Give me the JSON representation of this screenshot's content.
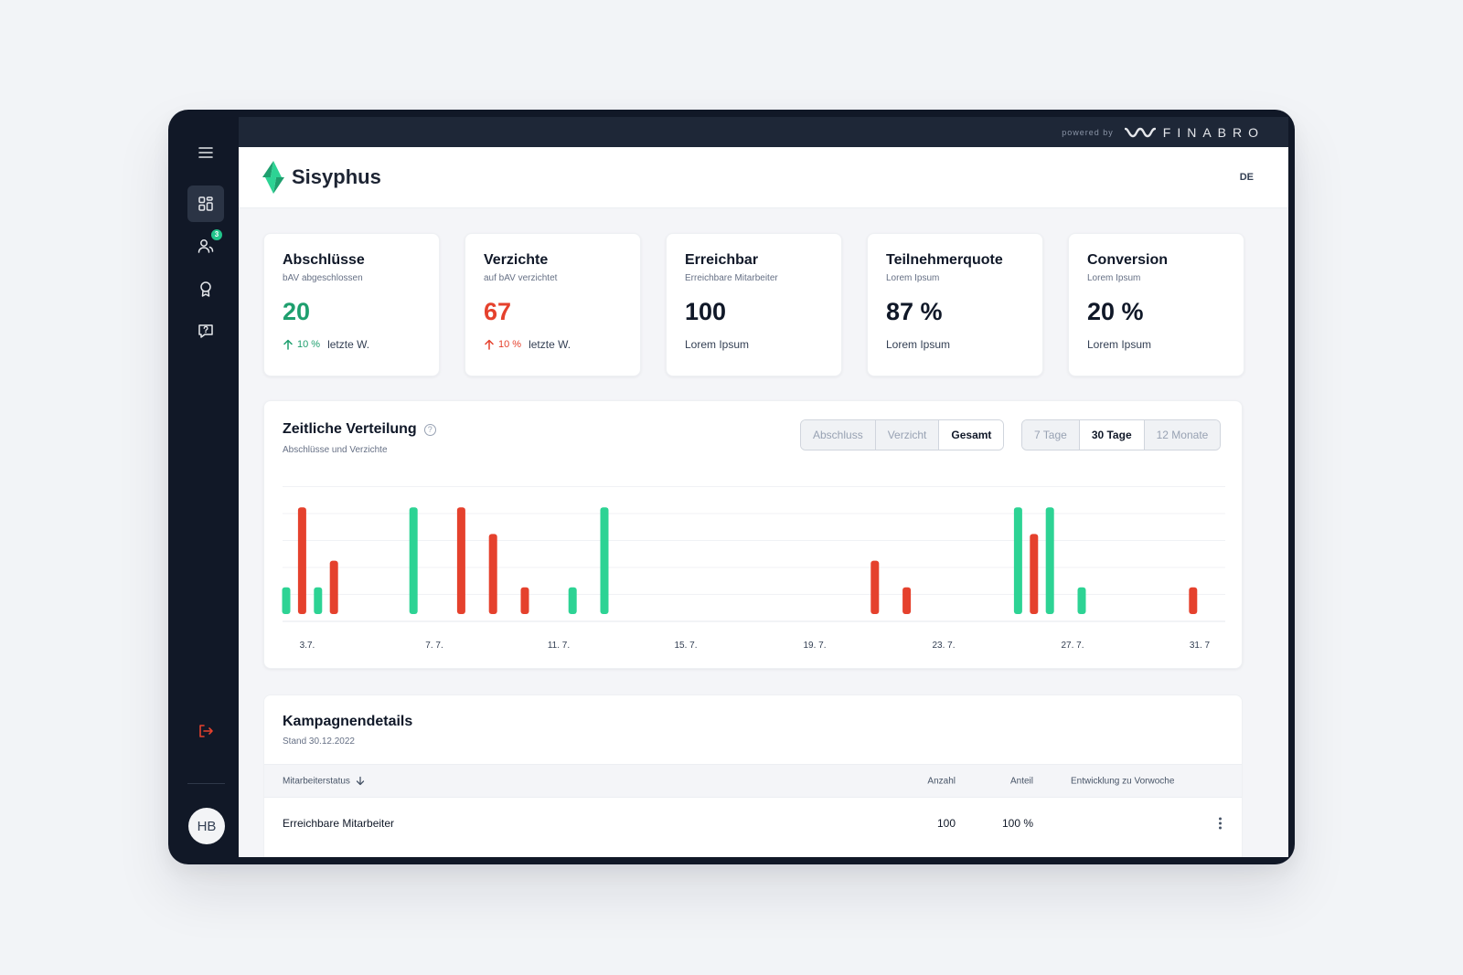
{
  "topbar": {
    "powered_by": "powered by",
    "partner": "FINABRO"
  },
  "header": {
    "app_name": "Sisyphus",
    "language": "DE"
  },
  "sidebar": {
    "notification_count": "3",
    "avatar_initials": "HB"
  },
  "kpis": [
    {
      "title": "Abschlüsse",
      "subtitle": "bAV abgeschlossen",
      "value": "20",
      "change": "10 %",
      "note": "letzte W."
    },
    {
      "title": "Verzichte",
      "subtitle": "auf bAV verzichtet",
      "value": "67",
      "change": "10 %",
      "note": "letzte W."
    },
    {
      "title": "Erreichbar",
      "subtitle": "Erreichbare Mitarbeiter",
      "value": "100",
      "footer": "Lorem Ipsum"
    },
    {
      "title": "Teilnehmerquote",
      "subtitle": "Lorem Ipsum",
      "value": "87 %",
      "footer": "Lorem Ipsum"
    },
    {
      "title": "Conversion",
      "subtitle": "Lorem Ipsum",
      "value": "20 %",
      "footer": "Lorem Ipsum"
    }
  ],
  "colors": {
    "accent_green": "#2dd394",
    "accent_red": "#e5412d",
    "sidebar_bg": "#111827"
  },
  "chart": {
    "title": "Zeitliche Verteilung",
    "subtitle": "Abschlüsse und Verzichte",
    "type_filter": [
      "Abschluss",
      "Verzicht",
      "Gesamt"
    ],
    "type_selected": "Gesamt",
    "range_filter": [
      "7 Tage",
      "30 Tage",
      "12 Monate"
    ],
    "range_selected": "30 Tage"
  },
  "chart_data": {
    "type": "bar",
    "x_tick_labels": [
      "3.7.",
      "7. 7.",
      "11. 7.",
      "15. 7.",
      "19. 7.",
      "23. 7.",
      "27. 7.",
      "31. 7"
    ],
    "ylim": [
      0,
      5
    ],
    "grid": true,
    "bars": [
      {
        "day": 1,
        "series": "Abschluss",
        "value": 1
      },
      {
        "day": 1.5,
        "series": "Verzicht",
        "value": 4
      },
      {
        "day": 2,
        "series": "Abschluss",
        "value": 1
      },
      {
        "day": 2.5,
        "series": "Verzicht",
        "value": 2
      },
      {
        "day": 5,
        "series": "Abschluss",
        "value": 4
      },
      {
        "day": 6.5,
        "series": "Verzicht",
        "value": 4
      },
      {
        "day": 7.5,
        "series": "Verzicht",
        "value": 3
      },
      {
        "day": 8.5,
        "series": "Verzicht",
        "value": 1
      },
      {
        "day": 10,
        "series": "Abschluss",
        "value": 1
      },
      {
        "day": 11,
        "series": "Abschluss",
        "value": 4
      },
      {
        "day": 19.5,
        "series": "Verzicht",
        "value": 2
      },
      {
        "day": 20.5,
        "series": "Verzicht",
        "value": 1
      },
      {
        "day": 24,
        "series": "Abschluss",
        "value": 4
      },
      {
        "day": 24.5,
        "series": "Verzicht",
        "value": 3
      },
      {
        "day": 25,
        "series": "Abschluss",
        "value": 4
      },
      {
        "day": 26,
        "series": "Abschluss",
        "value": 1
      },
      {
        "day": 29.5,
        "series": "Verzicht",
        "value": 1
      }
    ]
  },
  "campaign": {
    "title": "Kampagnendetails",
    "subtitle": "Stand 30.12.2022",
    "columns": [
      "Mitarbeiterstatus",
      "Anzahl",
      "Anteil",
      "Entwicklung zu Vorwoche"
    ],
    "rows": [
      {
        "status": "Erreichbare Mitarbeiter",
        "count": "100",
        "share": "100 %",
        "trend": ""
      }
    ]
  }
}
